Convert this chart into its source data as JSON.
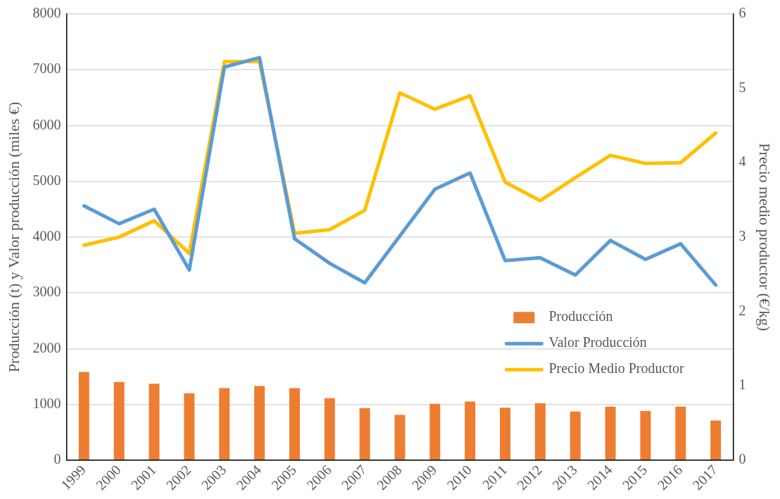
{
  "chart_data": {
    "type": "bar",
    "ylabel": "Producción (t) y Valor producción (miles €)",
    "y2label": "Precio medio productor (€/kg)",
    "categories": [
      "1999",
      "2000",
      "2001",
      "2002",
      "2003",
      "2004",
      "2005",
      "2006",
      "2007",
      "2008",
      "2009",
      "2010",
      "2011",
      "2012",
      "2013",
      "2014",
      "2015",
      "2016",
      "2017"
    ],
    "series": [
      {
        "name": "Producción",
        "color": "#ed7d31",
        "values": [
          1580,
          1400,
          1370,
          1200,
          1290,
          1330,
          1290,
          1110,
          930,
          810,
          1010,
          1050,
          940,
          1020,
          870,
          960,
          880,
          960,
          710
        ]
      },
      {
        "name": "Valor Producción",
        "type": "line",
        "color": "#5b9bd5",
        "values": [
          4560,
          4240,
          4500,
          3410,
          7050,
          7220,
          3970,
          3530,
          3180,
          4020,
          4860,
          5150,
          3580,
          3630,
          3320,
          3940,
          3600,
          3880,
          3140
        ]
      },
      {
        "name": "Precio Medio Productor",
        "type": "line",
        "axis": "y2",
        "color": "#ffc000",
        "values": [
          2.89,
          3.0,
          3.22,
          2.78,
          5.36,
          5.36,
          3.05,
          3.1,
          3.36,
          4.94,
          4.72,
          4.9,
          3.74,
          3.49,
          3.8,
          4.1,
          3.99,
          4.0,
          4.4
        ]
      }
    ],
    "ylim": [
      0,
      8000
    ],
    "yticks": [
      0,
      1000,
      2000,
      3000,
      4000,
      5000,
      6000,
      7000,
      8000
    ],
    "y2lim": [
      0,
      6
    ],
    "y2ticks": [
      0,
      1,
      2,
      3,
      4,
      5,
      6
    ],
    "grid": "y",
    "legend": "bottom right",
    "marker": "none",
    "line_style": "solid"
  }
}
